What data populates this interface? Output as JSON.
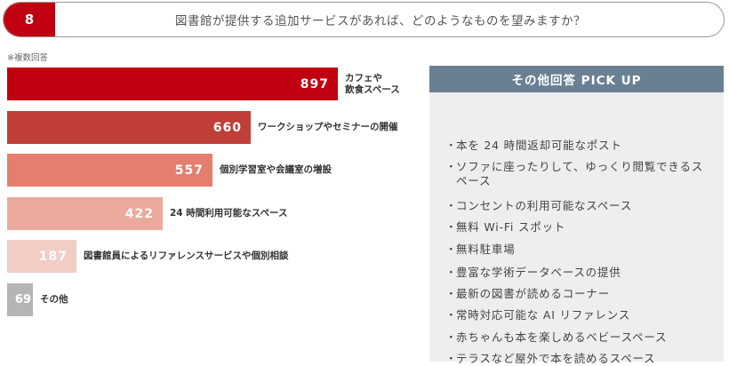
{
  "question": {
    "number": "8",
    "text": "図書館が提供する追加サービスがあれば、どのようなものを望みますか？"
  },
  "note": "※複数回答",
  "chart_data": {
    "type": "bar",
    "orientation": "horizontal",
    "categories": [
      "カフェや\n飲食スペース",
      "ワークショップやセミナーの開催",
      "個別学習室や会議室の増設",
      "24 時間利用可能なスペース",
      "図書館員によるリファレンスサービスや個別相談",
      "その他"
    ],
    "values": [
      897,
      660,
      557,
      422,
      187,
      69
    ],
    "colors": [
      "#c00010",
      "#c04038",
      "#e57e6e",
      "#ecaa9c",
      "#f2cdc6",
      "#b5b5b5"
    ],
    "grid": false,
    "legend": "none"
  },
  "pickup": {
    "title": "その他回答 PICK UP",
    "bullet": "・",
    "items": [
      "本を 24 時間返却可能なポスト",
      "ソファに座ったりして、ゆっくり閲覧できるスペース",
      "コンセントの利用可能なスペース",
      "無料 Wi-Fi スポット",
      "無料駐車場",
      "豊富な学術データベースの提供",
      "最新の図書が読めるコーナー",
      "常時対応可能な AI リファレンス",
      "赤ちゃんも本を楽しめるベビースペース",
      "テラスなど屋外で本を読めるスペース"
    ]
  }
}
